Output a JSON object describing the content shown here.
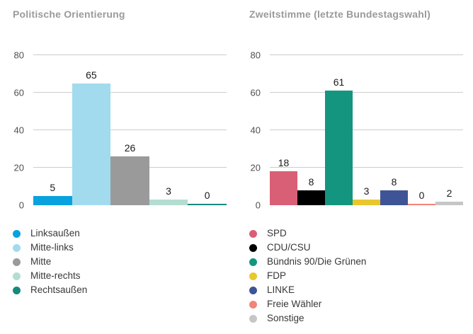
{
  "chart_data": [
    {
      "type": "bar",
      "title": "Politische Orientierung",
      "categories": [
        "Linksaußen",
        "Mitte-links",
        "Mitte",
        "Mitte-rechts",
        "Rechtsaußen"
      ],
      "values": [
        5,
        65,
        26,
        3,
        0
      ],
      "colors": [
        "#09a2de",
        "#a2dbee",
        "#9a9a9a",
        "#b3ddd2",
        "#17897d"
      ],
      "xlabel": "",
      "ylabel": "",
      "ylim": [
        0,
        80
      ],
      "y_ticks": [
        0,
        20,
        40,
        60,
        80
      ],
      "grid": true,
      "legend_position": "bottom-left"
    },
    {
      "type": "bar",
      "title": "Zweitstimme (letzte Bundestagswahl)",
      "categories": [
        "SPD",
        "CDU/CSU",
        "Bündnis 90/Die Grünen",
        "FDP",
        "LINKE",
        "Freie Wähler",
        "Sonstige"
      ],
      "values": [
        18,
        8,
        61,
        3,
        8,
        0,
        2
      ],
      "colors": [
        "#d95f77",
        "#000000",
        "#149580",
        "#e9c72e",
        "#3f5496",
        "#f08577",
        "#c6c6c6"
      ],
      "xlabel": "",
      "ylabel": "",
      "ylim": [
        0,
        80
      ],
      "y_ticks": [
        0,
        20,
        40,
        60,
        80
      ],
      "grid": true,
      "legend_position": "bottom-left"
    }
  ]
}
